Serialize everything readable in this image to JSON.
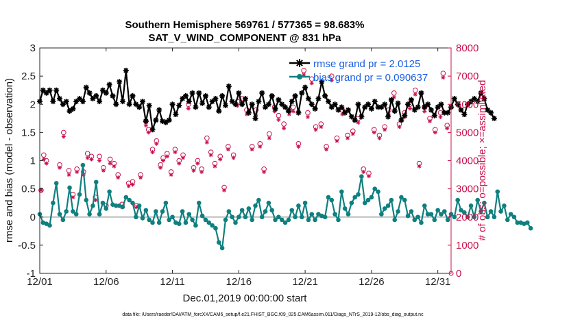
{
  "chart_data": {
    "type": "line",
    "title_line1": "Southern Hemisphere 569761 / 577365 = 98.683%",
    "title_line2": "SAT_V_WIND_COMPONENT @ 831 hPa",
    "xlabel": "Dec.01,2019 00:00:00 start",
    "ylabel_left": "rmse and bias (model - observation)",
    "ylabel_right": "# of obs: o=possible; ×=assimilated",
    "footnote": "data file: /Users/raeder/DAI/ATM_forcXX/CAM6_setup/f.e21.FHIST_BGC.f09_025.CAM6assim.011/Diags_NTrS_2019-12/obs_diag_output.nc",
    "xlim": [
      1,
      32
    ],
    "ylim_left": [
      -1,
      3
    ],
    "ylim_right": [
      0,
      8000
    ],
    "x_ticks": [
      1,
      6,
      11,
      16,
      21,
      26,
      31
    ],
    "x_tick_labels": [
      "12/01",
      "12/06",
      "12/11",
      "12/16",
      "12/21",
      "12/26",
      "12/31"
    ],
    "y_ticks_left": [
      -1,
      -0.5,
      0,
      0.5,
      1,
      1.5,
      2,
      2.5,
      3
    ],
    "y_tick_labels_left": [
      "-1",
      "-0.5",
      "0",
      "0.5",
      "1",
      "1.5",
      "2",
      "2.5",
      "3"
    ],
    "y_ticks_right": [
      0,
      1000,
      2000,
      3000,
      4000,
      5000,
      6000,
      7000,
      8000
    ],
    "y_tick_labels_right": [
      "0",
      "1000",
      "2000",
      "3000",
      "4000",
      "5000",
      "6000",
      "7000",
      "8000"
    ],
    "legend": [
      "rmse grand pr = 2.0125",
      "bias grand pr = 0.090637"
    ],
    "x_start": 1.0,
    "x_step": 0.25,
    "series": [
      {
        "name": "rmse",
        "color": "#000000",
        "marker": "star",
        "axis": "left",
        "values": [
          2.05,
          2.25,
          2.2,
          2.25,
          2.05,
          2.25,
          2.1,
          2.0,
          2.05,
          1.88,
          1.92,
          2.05,
          2.1,
          2.05,
          2.3,
          2.2,
          2.1,
          2.15,
          2.05,
          2.25,
          2.2,
          2.35,
          2.15,
          2.0,
          2.4,
          2.05,
          2.6,
          2.0,
          2.15,
          2.0,
          1.95,
          2.05,
          1.7,
          1.98,
          1.55,
          1.72,
          1.9,
          1.7,
          1.68,
          1.72,
          2.0,
          1.82,
          1.98,
          2.1,
          2.15,
          2.05,
          2.2,
          1.95,
          2.2,
          2.02,
          2.15,
          1.95,
          2.05,
          2.1,
          1.88,
          2.15,
          1.98,
          2.32,
          2.05,
          2.0,
          2.2,
          2.0,
          2.1,
          1.85,
          2.0,
          1.75,
          2.05,
          2.2,
          1.95,
          2.0,
          2.15,
          1.92,
          2.08,
          2.0,
          1.95,
          1.88,
          2.05,
          2.15,
          1.85,
          2.2,
          2.3,
          2.1,
          2.0,
          1.92,
          2.1,
          2.4,
          2.15,
          2.05,
          1.95,
          2.0,
          1.9,
          1.95,
          1.85,
          1.9,
          1.78,
          1.72,
          2.0,
          1.78,
          1.95,
          2.0,
          1.92,
          2.05,
          1.95,
          1.95,
          2.0,
          1.78,
          2.08,
          1.88,
          2.02,
          1.72,
          1.8,
          2.0,
          2.08,
          1.9,
          1.95,
          2.2,
          1.95,
          2.0,
          1.9,
          1.8,
          1.95,
          2.0,
          1.85,
          1.85,
          1.95,
          2.1,
          2.0,
          1.9,
          1.82,
          2.0,
          2.05,
          2.1,
          2.05,
          2.2,
          2.1,
          1.9,
          1.85,
          1.75
        ]
      },
      {
        "name": "bias",
        "color": "#0f7f7f",
        "marker": "dot",
        "axis": "left",
        "values": [
          0.05,
          -0.1,
          -0.12,
          -0.15,
          0.25,
          0.6,
          0.05,
          -0.05,
          0.1,
          0.52,
          0.1,
          0.05,
          0.4,
          0.92,
          0.3,
          0.05,
          0.2,
          0.62,
          0.05,
          0.25,
          0.15,
          0.45,
          0.22,
          0.2,
          0.2,
          0.18,
          0.35,
          0.3,
          0.25,
          0.0,
          0.2,
          -0.02,
          0.12,
          -0.05,
          -0.1,
          0.1,
          -0.1,
          0.1,
          0.25,
          -0.05,
          0.0,
          -0.1,
          -0.12,
          0.1,
          -0.1,
          0.05,
          -0.05,
          -0.15,
          0.25,
          0.02,
          -0.05,
          -0.1,
          -0.15,
          -0.2,
          -0.45,
          -0.55,
          -0.05,
          0.1,
          0.0,
          -0.1,
          0.0,
          0.12,
          0.0,
          0.15,
          -0.05,
          0.2,
          0.3,
          0.0,
          0.1,
          0.25,
          0.12,
          -0.05,
          0.0,
          -0.05,
          -0.1,
          -0.05,
          0.12,
          0.0,
          0.2,
          0.0,
          0.25,
          -0.05,
          0.05,
          -0.05,
          0.05,
          0.02,
          0.0,
          0.35,
          0.3,
          0.05,
          -0.05,
          0.45,
          0.15,
          0.05,
          0.25,
          0.35,
          0.4,
          0.72,
          0.25,
          0.3,
          0.35,
          0.5,
          0.45,
          0.05,
          0.15,
          0.2,
          0.3,
          -0.05,
          0.1,
          0.35,
          0.3,
          0.02,
          0.1,
          -0.05,
          0.0,
          -0.1,
          0.2,
          0.05,
          0.05,
          -0.05,
          0.12,
          0.05,
          0.1,
          -0.05,
          0.05,
          0.0,
          0.3,
          0.12,
          0.08,
          0.0,
          0.2,
          0.0,
          0.3,
          0.1,
          0.25,
          0.0,
          0.1,
          0.0,
          0.45,
          0.1,
          0.2,
          -0.05,
          0.05,
          0.0,
          -0.1,
          -0.1,
          -0.12,
          -0.1,
          -0.2
        ]
      }
    ],
    "obs_series": [
      {
        "name": "possible",
        "color": "#c8104a",
        "marker": "circle",
        "axis": "right",
        "points": [
          [
            1.1,
            2950
          ],
          [
            1.3,
            4200
          ],
          [
            1.5,
            4000
          ],
          [
            2.5,
            3850
          ],
          [
            2.8,
            5000
          ],
          [
            3.2,
            3650
          ],
          [
            3.5,
            2800
          ],
          [
            3.8,
            3700
          ],
          [
            4.3,
            3600
          ],
          [
            4.6,
            4250
          ],
          [
            4.9,
            4150
          ],
          [
            5.2,
            2700
          ],
          [
            5.5,
            4150
          ],
          [
            5.8,
            3750
          ],
          [
            6.0,
            2400
          ],
          [
            6.3,
            4050
          ],
          [
            6.6,
            3900
          ],
          [
            6.9,
            3500
          ],
          [
            7.2,
            2450
          ],
          [
            7.7,
            3200
          ],
          [
            8.0,
            3250
          ],
          [
            8.3,
            2400
          ],
          [
            8.6,
            3500
          ],
          [
            9.0,
            5400
          ],
          [
            9.2,
            5100
          ],
          [
            9.5,
            4400
          ],
          [
            9.8,
            4700
          ],
          [
            10.1,
            3850
          ],
          [
            10.3,
            4100
          ],
          [
            10.6,
            4250
          ],
          [
            10.9,
            3600
          ],
          [
            11.2,
            4400
          ],
          [
            11.5,
            4000
          ],
          [
            11.8,
            4200
          ],
          [
            12.2,
            6000
          ],
          [
            12.6,
            3750
          ],
          [
            12.9,
            4000
          ],
          [
            13.2,
            3700
          ],
          [
            13.6,
            4800
          ],
          [
            13.9,
            4300
          ],
          [
            14.2,
            3900
          ],
          [
            14.6,
            4150
          ],
          [
            14.9,
            3050
          ],
          [
            15.2,
            4500
          ],
          [
            15.6,
            4200
          ],
          [
            15.9,
            6100
          ],
          [
            16.2,
            6200
          ],
          [
            16.6,
            5800
          ],
          [
            17.0,
            4500
          ],
          [
            17.3,
            5800
          ],
          [
            17.6,
            4600
          ],
          [
            17.9,
            3700
          ],
          [
            18.3,
            4950
          ],
          [
            18.7,
            5900
          ],
          [
            19.0,
            5600
          ],
          [
            19.4,
            5300
          ],
          [
            19.8,
            5800
          ],
          [
            20.1,
            5900
          ],
          [
            20.5,
            4600
          ],
          [
            20.9,
            7200
          ],
          [
            21.2,
            5700
          ],
          [
            21.5,
            6900
          ],
          [
            21.8,
            5200
          ],
          [
            22.2,
            5300
          ],
          [
            22.6,
            4500
          ],
          [
            23.0,
            7000
          ],
          [
            23.4,
            4800
          ],
          [
            23.8,
            5800
          ],
          [
            24.2,
            4900
          ],
          [
            24.6,
            5050
          ],
          [
            25.0,
            5500
          ],
          [
            25.4,
            3700
          ],
          [
            25.8,
            3550
          ],
          [
            26.2,
            5100
          ],
          [
            26.6,
            4900
          ],
          [
            27.0,
            5200
          ],
          [
            27.3,
            5800
          ],
          [
            27.7,
            6400
          ],
          [
            28.1,
            5300
          ],
          [
            28.5,
            5700
          ],
          [
            28.9,
            6000
          ],
          [
            29.3,
            6500
          ],
          [
            29.6,
            3900
          ],
          [
            30.0,
            5900
          ],
          [
            30.4,
            5500
          ],
          [
            30.8,
            5100
          ],
          [
            31.2,
            5700
          ],
          [
            31.4,
            7100
          ],
          [
            31.7,
            5250
          ]
        ]
      },
      {
        "name": "assimilated",
        "color": "#c8104a",
        "marker": "x",
        "axis": "right",
        "points": [
          [
            1.1,
            2950
          ],
          [
            1.3,
            4050
          ],
          [
            1.5,
            3900
          ],
          [
            2.5,
            3750
          ],
          [
            2.8,
            4850
          ],
          [
            3.2,
            3500
          ],
          [
            3.5,
            2700
          ],
          [
            3.8,
            3600
          ],
          [
            4.3,
            3500
          ],
          [
            4.6,
            4100
          ],
          [
            4.9,
            4050
          ],
          [
            5.2,
            2600
          ],
          [
            5.5,
            4000
          ],
          [
            5.8,
            3650
          ],
          [
            6.0,
            2300
          ],
          [
            6.3,
            3900
          ],
          [
            6.6,
            3800
          ],
          [
            6.9,
            3400
          ],
          [
            7.2,
            2350
          ],
          [
            7.7,
            3100
          ],
          [
            8.0,
            3150
          ],
          [
            8.3,
            2350
          ],
          [
            8.6,
            3400
          ],
          [
            9.0,
            5250
          ],
          [
            9.2,
            5000
          ],
          [
            9.5,
            4300
          ],
          [
            9.8,
            4600
          ],
          [
            10.1,
            3750
          ],
          [
            10.3,
            4000
          ],
          [
            10.6,
            4150
          ],
          [
            10.9,
            3500
          ],
          [
            11.2,
            4300
          ],
          [
            11.5,
            3900
          ],
          [
            11.8,
            4100
          ],
          [
            12.2,
            5850
          ],
          [
            12.6,
            3650
          ],
          [
            12.9,
            3900
          ],
          [
            13.2,
            3600
          ],
          [
            13.6,
            4650
          ],
          [
            13.9,
            4200
          ],
          [
            14.2,
            3800
          ],
          [
            14.6,
            4050
          ],
          [
            14.9,
            2950
          ],
          [
            15.2,
            4400
          ],
          [
            15.6,
            4100
          ],
          [
            15.9,
            5950
          ],
          [
            16.2,
            6050
          ],
          [
            16.6,
            5650
          ],
          [
            17.0,
            4400
          ],
          [
            17.3,
            5650
          ],
          [
            17.6,
            4500
          ],
          [
            17.9,
            3600
          ],
          [
            18.3,
            4800
          ],
          [
            18.7,
            5750
          ],
          [
            19.0,
            5450
          ],
          [
            19.4,
            5150
          ],
          [
            19.8,
            5650
          ],
          [
            20.1,
            5750
          ],
          [
            20.5,
            4500
          ],
          [
            20.9,
            7050
          ],
          [
            21.2,
            5550
          ],
          [
            21.5,
            6750
          ],
          [
            21.8,
            5100
          ],
          [
            22.2,
            5200
          ],
          [
            22.6,
            4400
          ],
          [
            23.0,
            6850
          ],
          [
            23.4,
            4700
          ],
          [
            23.8,
            5650
          ],
          [
            24.2,
            4800
          ],
          [
            24.6,
            4950
          ],
          [
            25.0,
            5350
          ],
          [
            25.4,
            3600
          ],
          [
            25.8,
            3450
          ],
          [
            26.2,
            5000
          ],
          [
            26.6,
            4800
          ],
          [
            27.0,
            5100
          ],
          [
            27.3,
            5650
          ],
          [
            27.7,
            6250
          ],
          [
            28.1,
            5200
          ],
          [
            28.5,
            5550
          ],
          [
            28.9,
            5850
          ],
          [
            29.3,
            6350
          ],
          [
            29.6,
            3800
          ],
          [
            30.0,
            5750
          ],
          [
            30.4,
            5400
          ],
          [
            30.8,
            5000
          ],
          [
            31.2,
            5550
          ],
          [
            31.4,
            6950
          ],
          [
            31.7,
            5150
          ]
        ]
      }
    ]
  }
}
